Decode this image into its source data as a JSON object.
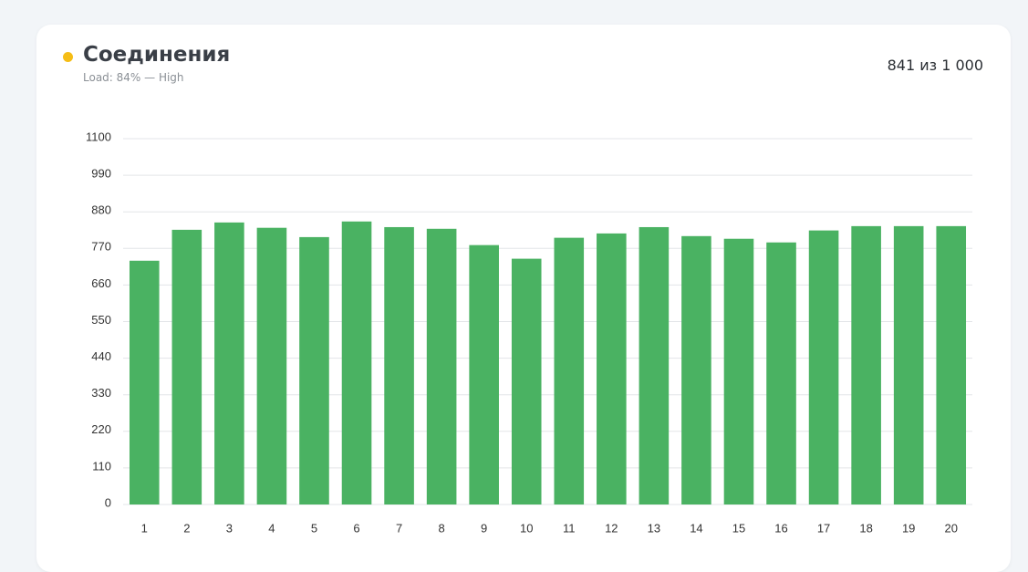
{
  "header": {
    "title": "Соединения",
    "subtitle": "Load: 84% — High",
    "summary": "841 из 1 000"
  },
  "chart_data": {
    "type": "bar",
    "categories": [
      "1",
      "2",
      "3",
      "4",
      "5",
      "6",
      "7",
      "8",
      "9",
      "10",
      "11",
      "12",
      "13",
      "14",
      "15",
      "16",
      "17",
      "18",
      "19",
      "20"
    ],
    "values": [
      733,
      826,
      848,
      832,
      804,
      851,
      834,
      829,
      780,
      739,
      802,
      815,
      834,
      807,
      799,
      788,
      824,
      837,
      837,
      837
    ],
    "color": "#4ab262",
    "ylim": [
      0,
      1100
    ],
    "yticks": [
      0,
      110,
      220,
      330,
      440,
      550,
      660,
      770,
      880,
      990,
      1100
    ],
    "grid": true
  }
}
